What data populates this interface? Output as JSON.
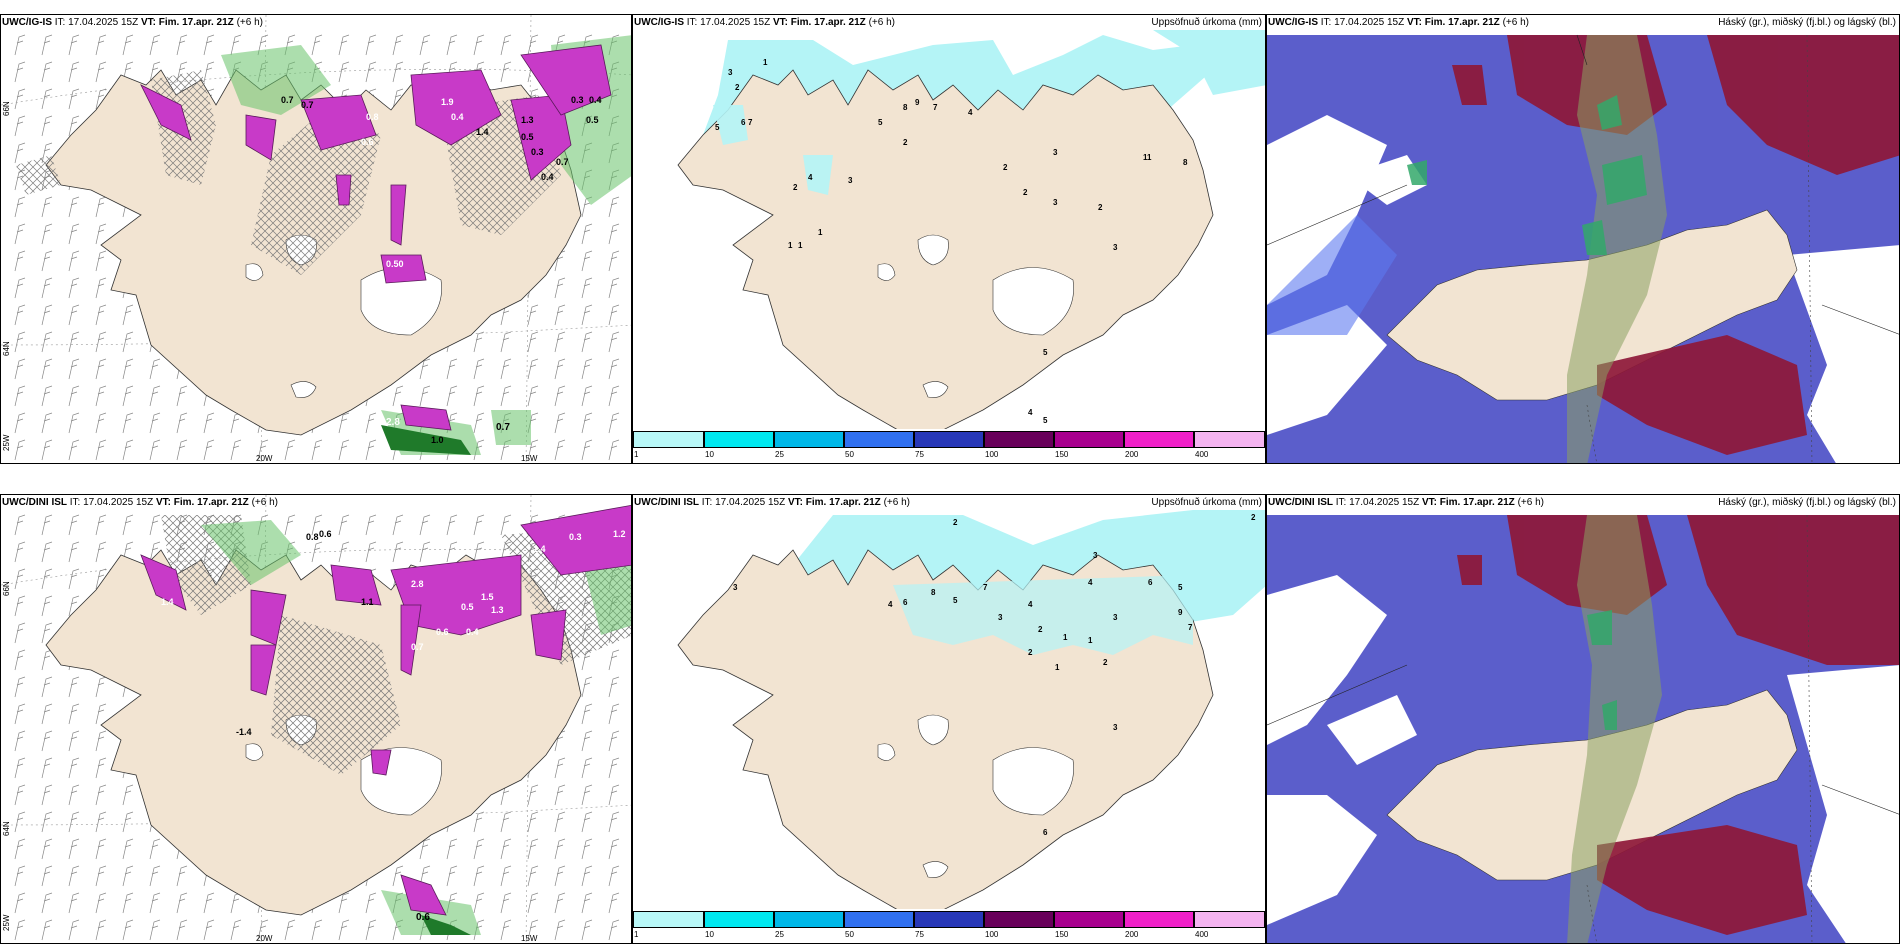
{
  "panels": [
    {
      "model": "UWC/IG-IS",
      "it": "17.04.2025 15Z",
      "vt_label": "VT:",
      "vt": "Fim. 17.apr. 21Z",
      "lead": "(+6 h)",
      "right": ""
    },
    {
      "model": "UWC/IG-IS",
      "it": "17.04.2025 15Z",
      "vt_label": "VT:",
      "vt": "Fim. 17.apr. 21Z",
      "lead": "(+6 h)",
      "right": "Uppsöfnuð úrkoma (mm)"
    },
    {
      "model": "UWC/IG-IS",
      "it": "17.04.2025 15Z",
      "vt_label": "VT:",
      "vt": "Fim. 17.apr. 21Z",
      "lead": "(+6 h)",
      "right": "Háský (gr.), miðský (fj.bl.) og lágský (bl.)"
    },
    {
      "model": "UWC/DINI ISL",
      "it": "17.04.2025 15Z",
      "vt_label": "VT:",
      "vt": "Fim. 17.apr. 21Z",
      "lead": "(+6 h)",
      "right": ""
    },
    {
      "model": "UWC/DINI ISL",
      "it": "17.04.2025 15Z",
      "vt_label": "VT:",
      "vt": "Fim. 17.apr. 21Z",
      "lead": "(+6 h)",
      "right": "Uppsöfnuð úrkoma (mm)"
    },
    {
      "model": "UWC/DINI ISL",
      "it": "17.04.2025 15Z",
      "vt_label": "VT:",
      "vt": "Fim. 17.apr. 21Z",
      "lead": "(+6 h)",
      "right": "Háský (gr.), miðský (fj.bl.) og lágský (bl.)"
    }
  ],
  "gridlabels": {
    "lat66": "66N",
    "lat64": "64N",
    "lon25": "25W",
    "lon20": "20W",
    "lon15": "15W"
  },
  "precip_legend": [
    {
      "label": "1",
      "color": "#b8f8f8"
    },
    {
      "label": "10",
      "color": "#00e8f0"
    },
    {
      "label": "25",
      "color": "#00b8e8"
    },
    {
      "label": "50",
      "color": "#3070f0"
    },
    {
      "label": "75",
      "color": "#2838b8"
    },
    {
      "label": "100",
      "color": "#68005a"
    },
    {
      "label": "150",
      "color": "#a8008e"
    },
    {
      "label": "200",
      "color": "#f020c8"
    },
    {
      "label": "400",
      "color": "#f4b4f0"
    }
  ],
  "colors": {
    "land": "#f2e4d2",
    "precip_light": "#b4f4f6",
    "cloud_low": "#5b5ecb",
    "cloud_high": "#8e1838",
    "cloud_mid": "#33a86a",
    "snow": "#c83ac8",
    "rain": "#3a9a3a"
  },
  "values": {
    "top_left": [
      "0.7",
      "0.7",
      "1.4",
      "0.3",
      "0.4",
      "0.5",
      "1.3",
      "0.5",
      "0.3",
      "0.7",
      "0.4",
      "0.50",
      "2.8",
      "1.0",
      "0.7",
      "0.6",
      "0.4",
      "1.9",
      "0.8"
    ],
    "top_mid": [
      "1",
      "3",
      "2",
      "5",
      "7",
      "6",
      "9",
      "8",
      "7",
      "4",
      "5",
      "2",
      "3",
      "4",
      "2",
      "1",
      "1",
      "1",
      "2",
      "3",
      "11",
      "8",
      "2",
      "3",
      "2",
      "3",
      "5",
      "5",
      "4"
    ],
    "bot_left": [
      "0.8",
      "0.6",
      "0.3",
      "1.2",
      "1.4",
      "2.8",
      "1.1",
      "1.4",
      "0.7",
      "0.6",
      "0.5",
      "1.5",
      "1.3",
      "-1.4",
      "0.4",
      "0.6"
    ],
    "bot_mid": [
      "2",
      "2",
      "3",
      "4",
      "8",
      "6",
      "7",
      "5",
      "3",
      "4",
      "2",
      "1",
      "1",
      "2",
      "3",
      "6",
      "9",
      "7",
      "5",
      "3",
      "4",
      "1",
      "2",
      "3",
      "6"
    ]
  }
}
